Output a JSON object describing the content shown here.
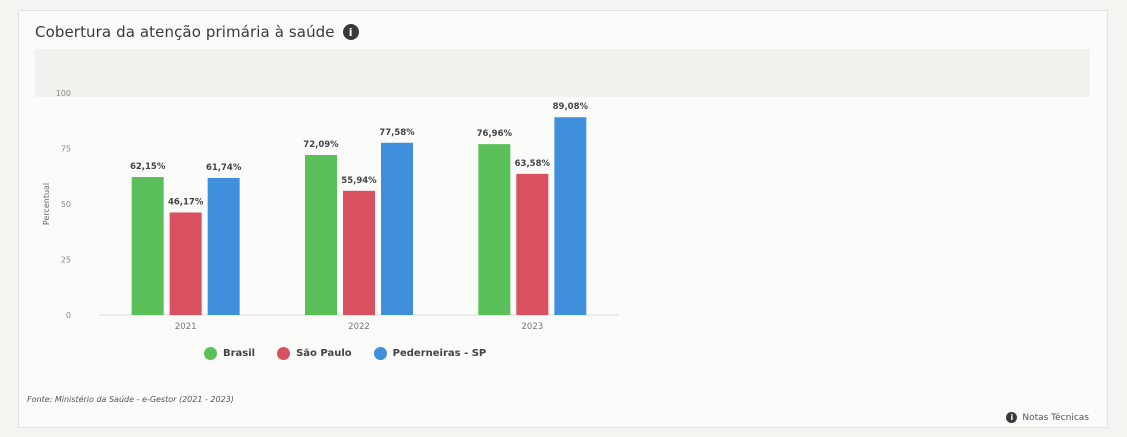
{
  "card": {
    "title": "Cobertura da atenção primária à saúde",
    "info_icon": "info-icon",
    "source": "Fonte: Ministério da Saúde - e-Gestor (2021 - 2023)",
    "notes_label": "Notas Técnicas"
  },
  "chart_data": {
    "type": "bar",
    "categories": [
      "2021",
      "2022",
      "2023"
    ],
    "ylabel": "Percentual",
    "ylim": [
      0,
      100
    ],
    "yticks": [
      "0",
      "25",
      "50",
      "75",
      "100"
    ],
    "legend_position": "bottom",
    "grid": false,
    "series": [
      {
        "name": "Brasil",
        "color": "#5bbf5a",
        "values": [
          62.15,
          72.09,
          76.96
        ],
        "labels": [
          "62,15%",
          "72,09%",
          "76,96%"
        ]
      },
      {
        "name": "São Paulo",
        "color": "#d9505f",
        "values": [
          46.17,
          55.94,
          63.58
        ],
        "labels": [
          "46,17%",
          "55,94%",
          "63,58%"
        ]
      },
      {
        "name": "Pederneiras - SP",
        "color": "#3f8fdc",
        "values": [
          61.74,
          77.58,
          89.08
        ],
        "labels": [
          "61,74%",
          "77,58%",
          "89,08%"
        ]
      }
    ]
  }
}
